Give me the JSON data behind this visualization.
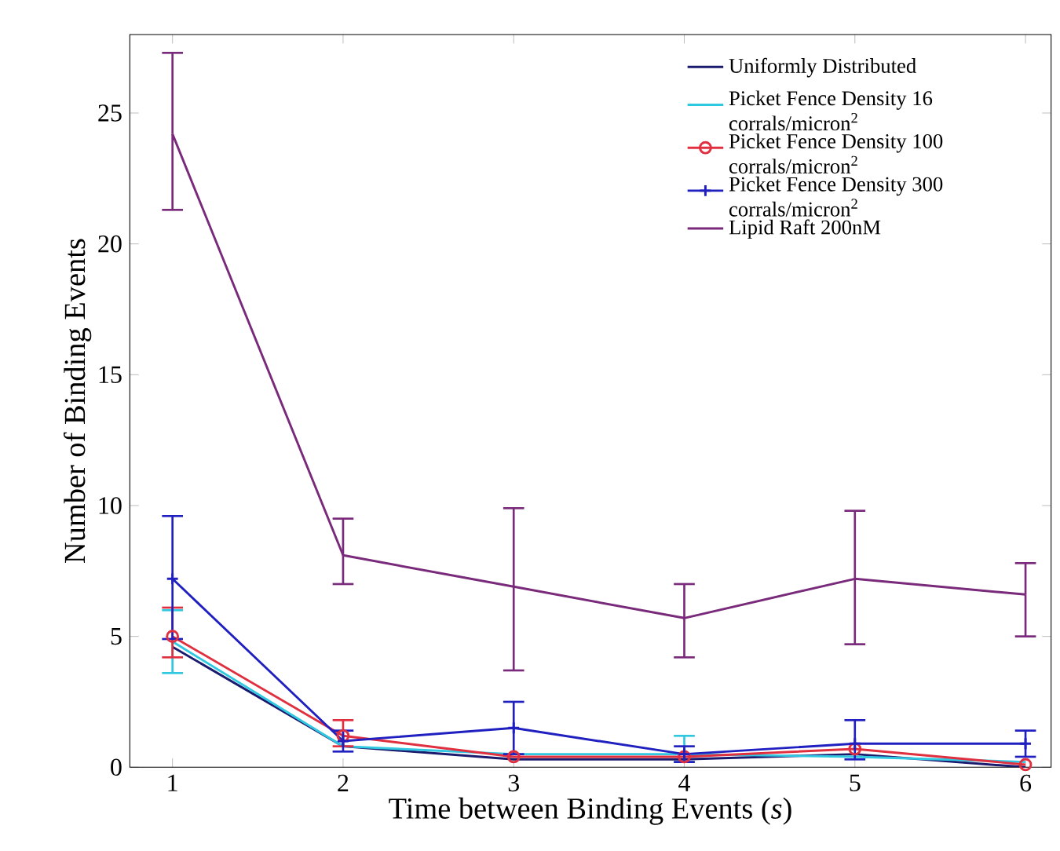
{
  "chart_data": {
    "type": "line",
    "xlabel": "Time between Binding Events (*s*)",
    "ylabel": "Number of Binding Events",
    "x": [
      1,
      2,
      3,
      4,
      5,
      6
    ],
    "xlim": [
      0.75,
      6.15
    ],
    "ylim": [
      0,
      28
    ],
    "xticks": [
      1,
      2,
      3,
      4,
      5,
      6
    ],
    "yticks": [
      0,
      5,
      10,
      15,
      20,
      25
    ],
    "legend": "top right",
    "grid": false,
    "series": [
      {
        "name": "Uniformly Distributed",
        "color": "#1a1a6e",
        "marker": "none",
        "values": [
          4.6,
          0.8,
          0.3,
          0.3,
          0.5,
          0.0
        ],
        "errors": [
          null,
          null,
          null,
          null,
          null,
          null
        ]
      },
      {
        "name": "Picket Fence Density 16 corrals/micron$^{2}$",
        "color": "#30c8e0",
        "marker": "none",
        "values": [
          4.8,
          0.8,
          0.5,
          0.5,
          0.4,
          0.2
        ],
        "errors": [
          [
            3.6,
            6.0
          ],
          null,
          null,
          [
            0.2,
            1.2
          ],
          null,
          null
        ]
      },
      {
        "name": "Picket Fence Density 100 corrals/micron$^{2}$",
        "color": "#e03040",
        "marker": "circle",
        "values": [
          5.0,
          1.2,
          0.4,
          0.4,
          0.7,
          0.1
        ],
        "errors": [
          [
            4.2,
            6.1
          ],
          [
            0.8,
            1.8
          ],
          null,
          null,
          null,
          null
        ]
      },
      {
        "name": "Picket Fence Density 300 corrals/micron$^{2}$",
        "color": "#2020c0",
        "marker": "cross",
        "values": [
          7.2,
          1.0,
          1.5,
          0.5,
          0.9,
          0.9
        ],
        "errors": [
          [
            4.9,
            9.6
          ],
          [
            0.6,
            1.4
          ],
          [
            0.5,
            2.5
          ],
          [
            0.2,
            0.8
          ],
          [
            0.3,
            1.8
          ],
          [
            0.4,
            1.4
          ]
        ]
      },
      {
        "name": "Lipid Raft 200nM",
        "color": "#7a2a7a",
        "marker": "none",
        "values": [
          24.2,
          8.1,
          6.9,
          5.7,
          7.2,
          6.6
        ],
        "errors": [
          [
            21.3,
            27.3
          ],
          [
            7.0,
            9.5
          ],
          [
            3.7,
            9.9
          ],
          [
            4.2,
            7.0
          ],
          [
            4.7,
            9.8
          ],
          [
            5.0,
            7.8
          ]
        ]
      }
    ]
  }
}
